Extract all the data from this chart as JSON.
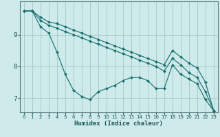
{
  "xlabel": "Humidex (Indice chaleur)",
  "bg_color": "#ceeaea",
  "grid_color": "#aacccc",
  "line_color": "#1a7070",
  "marker_color": "#1a7070",
  "xlim": [
    -0.5,
    23.5
  ],
  "ylim": [
    6.55,
    10.05
  ],
  "yticks": [
    7,
    8,
    9
  ],
  "xticks": [
    0,
    1,
    2,
    3,
    4,
    5,
    6,
    7,
    8,
    9,
    10,
    11,
    12,
    13,
    14,
    15,
    16,
    17,
    18,
    19,
    20,
    21,
    22,
    23
  ],
  "series": [
    [
      9.75,
      9.75,
      9.25,
      9.05,
      8.45,
      7.75,
      7.25,
      7.05,
      6.95,
      7.2,
      7.3,
      7.4,
      7.55,
      7.65,
      7.65,
      7.55,
      7.3,
      7.3,
      8.05,
      7.75,
      7.6,
      7.45,
      6.95,
      6.6
    ],
    [
      9.75,
      9.75,
      9.55,
      9.4,
      9.35,
      9.25,
      9.15,
      9.05,
      8.95,
      8.85,
      8.75,
      8.65,
      8.55,
      8.45,
      8.35,
      8.25,
      8.15,
      8.05,
      8.5,
      8.3,
      8.1,
      7.95,
      7.5,
      6.6
    ],
    [
      9.75,
      9.75,
      9.45,
      9.3,
      9.2,
      9.1,
      9.0,
      8.9,
      8.8,
      8.7,
      8.6,
      8.5,
      8.4,
      8.3,
      8.2,
      8.1,
      8.0,
      7.85,
      8.25,
      8.05,
      7.8,
      7.65,
      7.2,
      6.6
    ]
  ]
}
